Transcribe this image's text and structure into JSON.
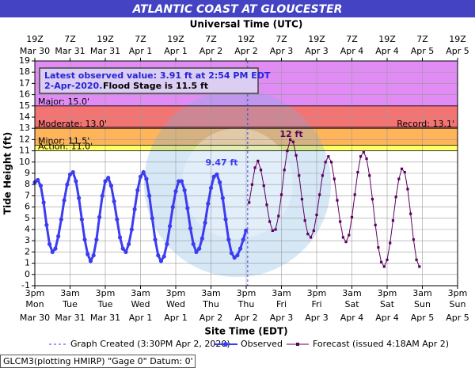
{
  "chart_data": {
    "type": "line",
    "title": "ATLANTIC COAST AT GLOUCESTER",
    "x2_title": "Universal Time (UTC)",
    "x_title": "Site Time (EDT)",
    "y_title": "Tide Height (ft)",
    "xlim": [
      0,
      144
    ],
    "ylim": [
      -1,
      19
    ],
    "yticks": [
      -1,
      0,
      1,
      2,
      3,
      4,
      5,
      6,
      7,
      8,
      9,
      10,
      11,
      12,
      13,
      14,
      15,
      16,
      17,
      18,
      19
    ],
    "xticks": [
      {
        "value": 0,
        "label": "3pm",
        "day": "Mon",
        "date": "Mar 30"
      },
      {
        "value": 12,
        "label": "3am",
        "day": "Tue",
        "date": "Mar 31"
      },
      {
        "value": 24,
        "label": "3pm",
        "day": "Tue",
        "date": "Mar 31"
      },
      {
        "value": 36,
        "label": "3am",
        "day": "Wed",
        "date": "Apr 1"
      },
      {
        "value": 48,
        "label": "3pm",
        "day": "Wed",
        "date": "Apr 1"
      },
      {
        "value": 60,
        "label": "3am",
        "day": "Thu",
        "date": "Apr 2"
      },
      {
        "value": 72,
        "label": "3pm",
        "day": "Thu",
        "date": "Apr 2"
      },
      {
        "value": 84,
        "label": "3am",
        "day": "Fri",
        "date": "Apr 3"
      },
      {
        "value": 96,
        "label": "3pm",
        "day": "Fri",
        "date": "Apr 3"
      },
      {
        "value": 108,
        "label": "3am",
        "day": "Sat",
        "date": "Apr 4"
      },
      {
        "value": 120,
        "label": "3pm",
        "day": "Sat",
        "date": "Apr 4"
      },
      {
        "value": 132,
        "label": "3am",
        "day": "Sun",
        "date": "Apr 5"
      },
      {
        "value": 144,
        "label": "3pm",
        "day": "Sun",
        "date": "Apr 5"
      }
    ],
    "x2ticks": [
      {
        "value": 0,
        "label": "19Z",
        "date": "Mar 30"
      },
      {
        "value": 12,
        "label": "7Z",
        "date": "Mar 31"
      },
      {
        "value": 24,
        "label": "19Z",
        "date": "Mar 31"
      },
      {
        "value": 36,
        "label": "7Z",
        "date": "Apr 1"
      },
      {
        "value": 48,
        "label": "19Z",
        "date": "Apr 1"
      },
      {
        "value": 60,
        "label": "7Z",
        "date": "Apr 2"
      },
      {
        "value": 72,
        "label": "19Z",
        "date": "Apr 2"
      },
      {
        "value": 84,
        "label": "7Z",
        "date": "Apr 3"
      },
      {
        "value": 96,
        "label": "19Z",
        "date": "Apr 3"
      },
      {
        "value": 108,
        "label": "7Z",
        "date": "Apr 4"
      },
      {
        "value": 120,
        "label": "19Z",
        "date": "Apr 4"
      },
      {
        "value": 132,
        "label": "7Z",
        "date": "Apr 5"
      },
      {
        "value": 144,
        "label": "19Z",
        "date": "Apr 5"
      }
    ],
    "grid": true,
    "flood_categories": [
      {
        "label": "Action: 11.0'",
        "value": 11,
        "color": "#ffff66"
      },
      {
        "label": "Minor: 11.5'",
        "value": 11.5,
        "color": "#ffb45a"
      },
      {
        "label": "Moderate: 13.0'",
        "value": 13,
        "color": "#f47474"
      },
      {
        "label": "Major: 15.0'",
        "value": 15,
        "color": "#e08cf4"
      }
    ],
    "record": {
      "label": "Record: 13.1'",
      "value": 13.1
    },
    "info_box": {
      "line1": "Latest observed value: 3.91  ft at 2:54 PM EDT",
      "line2a": "2-Apr-2020.",
      "line2b": "Flood Stage is 11.5 ft"
    },
    "annotations": [
      "9.47 ft",
      "12 ft"
    ],
    "graph_created": {
      "label": "Graph Created (3:30PM Apr 2, 2020)",
      "x": 72.5
    },
    "footer": "GLCM3(plotting HMIRP) \"Gage 0\" Datum: 0'",
    "series": [
      {
        "name": "Observed",
        "color": "#3c3cf0",
        "x": [
          0,
          1,
          2,
          3,
          4,
          5,
          6,
          7,
          8,
          9,
          10,
          11,
          12,
          13,
          14,
          15,
          16,
          17,
          18,
          19,
          20,
          21,
          22,
          23,
          24,
          25,
          26,
          27,
          28,
          29,
          30,
          31,
          32,
          33,
          34,
          35,
          36,
          37,
          38,
          39,
          40,
          41,
          42,
          43,
          44,
          45,
          46,
          47,
          48,
          49,
          50,
          51,
          52,
          53,
          54,
          55,
          56,
          57,
          58,
          59,
          60,
          61,
          62,
          63,
          64,
          65,
          66,
          67,
          68,
          69,
          70,
          71,
          71.9
        ],
        "values": [
          8.2,
          8.4,
          7.9,
          6.4,
          4.4,
          2.7,
          2.0,
          2.3,
          3.4,
          4.9,
          6.6,
          8.0,
          8.9,
          9.1,
          8.3,
          6.8,
          4.9,
          3.1,
          1.8,
          1.2,
          1.7,
          3.1,
          5.1,
          7.0,
          8.3,
          8.6,
          7.9,
          6.5,
          4.9,
          3.3,
          2.3,
          2.0,
          2.7,
          4.0,
          5.8,
          7.5,
          8.7,
          9.1,
          8.5,
          7.0,
          5.0,
          3.1,
          1.7,
          1.2,
          1.6,
          2.7,
          4.3,
          6.0,
          7.4,
          8.3,
          8.3,
          7.5,
          5.9,
          4.1,
          2.7,
          2.0,
          2.3,
          3.2,
          4.6,
          6.3,
          7.7,
          8.7,
          8.9,
          8.2,
          6.8,
          4.9,
          3.1,
          1.9,
          1.5,
          1.7,
          2.3,
          3.1,
          3.91
        ]
      },
      {
        "name": "Forecast (issued 4:18AM Apr 2)",
        "color": "#5c0060",
        "x": [
          73,
          74,
          75,
          76,
          77,
          78,
          79,
          80,
          81,
          82,
          83,
          84,
          85,
          86,
          87,
          88,
          89,
          90,
          91,
          92,
          93,
          94,
          95,
          96,
          97,
          98,
          99,
          100,
          101,
          102,
          103,
          104,
          105,
          106,
          107,
          108,
          109,
          110,
          111,
          112,
          113,
          114,
          115,
          116,
          117,
          118,
          119,
          120,
          121,
          122,
          123,
          124,
          125,
          126,
          127,
          128,
          129,
          130,
          131
        ],
        "values": [
          6.4,
          8.0,
          9.5,
          10.1,
          9.3,
          7.9,
          6.2,
          4.7,
          3.9,
          4.0,
          5.2,
          7.1,
          9.3,
          11.0,
          12.0,
          11.8,
          10.6,
          8.8,
          6.7,
          4.8,
          3.6,
          3.3,
          3.9,
          5.3,
          7.1,
          8.8,
          10.0,
          10.5,
          10.0,
          8.5,
          6.6,
          4.7,
          3.3,
          2.9,
          3.5,
          5.1,
          7.1,
          9.1,
          10.5,
          10.9,
          10.3,
          8.8,
          6.7,
          4.4,
          2.4,
          1.1,
          0.7,
          1.3,
          2.8,
          4.8,
          6.9,
          8.5,
          9.4,
          9.1,
          7.6,
          5.4,
          3.1,
          1.3,
          0.7
        ]
      }
    ]
  }
}
